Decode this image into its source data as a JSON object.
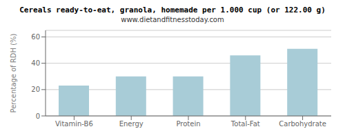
{
  "chart_data": {
    "type": "bar",
    "title": "Cereals ready-to-eat, granola, homemade per 1.000 cup (or 122.00 g)",
    "subtitle": "www.dietandfitnesstoday.com",
    "categories": [
      "Vitamin-B6",
      "Energy",
      "Protein",
      "Total-Fat",
      "Carbohydrate"
    ],
    "values": [
      23,
      30,
      30,
      46,
      51
    ],
    "color": "#a8ccd7",
    "ylabel": "Percentage of RDH (%)",
    "ylim": [
      0,
      65
    ],
    "yticks": [
      0,
      20,
      40,
      60
    ],
    "grid": true
  }
}
